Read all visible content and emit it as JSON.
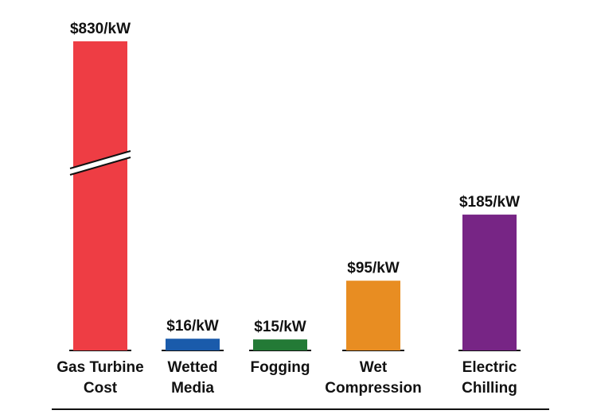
{
  "chart_data": {
    "type": "bar",
    "categories": [
      "Gas Turbine\nCost",
      "Wetted\nMedia",
      "Fogging",
      "Wet\nCompression",
      "Electric\nChilling"
    ],
    "values": [
      830,
      16,
      15,
      95,
      185
    ],
    "value_labels": [
      "$830/kW",
      "$16/kW",
      "$15/kW",
      "$95/kW",
      "$185/kW"
    ],
    "colors": [
      "#ee3d44",
      "#1a5bab",
      "#237a36",
      "#e88d22",
      "#772585"
    ]
  }
}
